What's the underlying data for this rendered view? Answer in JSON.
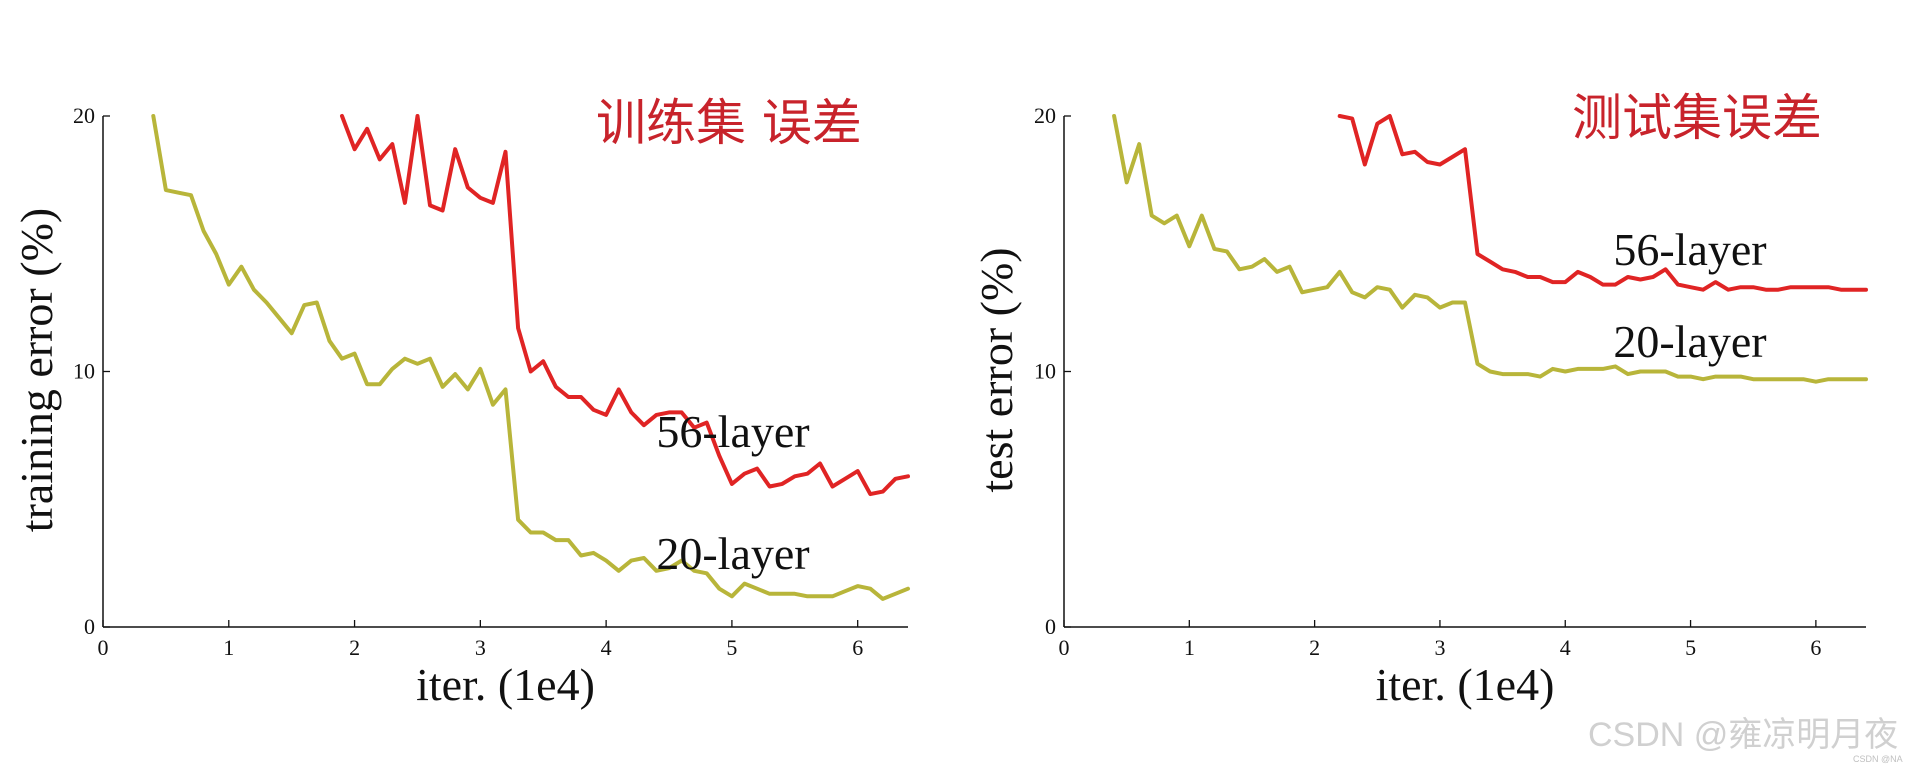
{
  "colors": {
    "layer56": "#e02424",
    "layer20": "#b8b53a",
    "axis": "#111111"
  },
  "watermark": {
    "text": "CSDN @雍凉明月夜",
    "small": "CSDN @NA"
  },
  "chart_data": [
    {
      "type": "line",
      "annotation": "训练集 误差",
      "xlabel": "iter. (1e4)",
      "ylabel": "training error (%)",
      "xlim": [
        0,
        6.4
      ],
      "ylim": [
        0,
        20
      ],
      "xticks": [
        "0",
        "1",
        "2",
        "3",
        "4",
        "5",
        "6"
      ],
      "yticks": [
        "0",
        "10",
        "20"
      ],
      "grid": false,
      "series": [
        {
          "name": "56-layer",
          "color_key": "layer56",
          "x": [
            1.9,
            2.0,
            2.1,
            2.2,
            2.3,
            2.4,
            2.5,
            2.6,
            2.7,
            2.8,
            2.9,
            3.0,
            3.1,
            3.2,
            3.3,
            3.4,
            3.5,
            3.6,
            3.7,
            3.8,
            3.9,
            4.0,
            4.1,
            4.2,
            4.3,
            4.4,
            4.5,
            4.6,
            4.7,
            4.8,
            4.9,
            5.0,
            5.1,
            5.2,
            5.3,
            5.4,
            5.5,
            5.6,
            5.7,
            5.8,
            5.9,
            6.0,
            6.1,
            6.2,
            6.3,
            6.4
          ],
          "y": [
            20,
            18.7,
            19.5,
            18.3,
            18.9,
            16.6,
            20,
            16.5,
            16.3,
            18.7,
            17.2,
            16.8,
            16.6,
            18.6,
            11.7,
            10.0,
            10.4,
            9.4,
            9.0,
            9.0,
            8.5,
            8.3,
            9.3,
            8.4,
            7.9,
            8.3,
            8.4,
            8.4,
            7.8,
            8.0,
            6.7,
            5.6,
            6.0,
            6.2,
            5.5,
            5.6,
            5.9,
            6.0,
            6.4,
            5.5,
            5.8,
            6.1,
            5.2,
            5.3,
            5.8,
            5.9
          ]
        },
        {
          "name": "20-layer",
          "color_key": "layer20",
          "x": [
            0.4,
            0.5,
            0.6,
            0.7,
            0.8,
            0.9,
            1.0,
            1.1,
            1.2,
            1.3,
            1.4,
            1.5,
            1.6,
            1.7,
            1.8,
            1.9,
            2.0,
            2.1,
            2.2,
            2.3,
            2.4,
            2.5,
            2.6,
            2.7,
            2.8,
            2.9,
            3.0,
            3.1,
            3.2,
            3.3,
            3.4,
            3.5,
            3.6,
            3.7,
            3.8,
            3.9,
            4.0,
            4.1,
            4.2,
            4.3,
            4.4,
            4.5,
            4.6,
            4.7,
            4.8,
            4.9,
            5.0,
            5.1,
            5.2,
            5.3,
            5.4,
            5.5,
            5.6,
            5.7,
            5.8,
            5.9,
            6.0,
            6.1,
            6.2,
            6.3,
            6.4
          ],
          "y": [
            20,
            17.1,
            17.0,
            16.9,
            15.5,
            14.6,
            13.4,
            14.1,
            13.2,
            12.7,
            12.1,
            11.5,
            12.6,
            12.7,
            11.2,
            10.5,
            10.7,
            9.5,
            9.5,
            10.1,
            10.5,
            10.3,
            10.5,
            9.4,
            9.9,
            9.3,
            10.1,
            8.7,
            9.3,
            4.2,
            3.7,
            3.7,
            3.4,
            3.4,
            2.8,
            2.9,
            2.6,
            2.2,
            2.6,
            2.7,
            2.2,
            2.3,
            2.6,
            2.2,
            2.1,
            1.5,
            1.2,
            1.7,
            1.5,
            1.3,
            1.3,
            1.3,
            1.2,
            1.2,
            1.2,
            1.4,
            1.6,
            1.5,
            1.1,
            1.3,
            1.5
          ]
        }
      ]
    },
    {
      "type": "line",
      "annotation": "测试集误差",
      "xlabel": "iter. (1e4)",
      "ylabel": "test error (%)",
      "xlim": [
        0,
        6.4
      ],
      "ylim": [
        0,
        20
      ],
      "xticks": [
        "0",
        "1",
        "2",
        "3",
        "4",
        "5",
        "6"
      ],
      "yticks": [
        "0",
        "10",
        "20"
      ],
      "grid": false,
      "series": [
        {
          "name": "56-layer",
          "color_key": "layer56",
          "x": [
            2.2,
            2.3,
            2.4,
            2.5,
            2.6,
            2.7,
            2.8,
            2.9,
            3.0,
            3.1,
            3.2,
            3.3,
            3.4,
            3.5,
            3.6,
            3.7,
            3.8,
            3.9,
            4.0,
            4.1,
            4.2,
            4.3,
            4.4,
            4.5,
            4.6,
            4.7,
            4.8,
            4.9,
            5.0,
            5.1,
            5.2,
            5.3,
            5.4,
            5.5,
            5.6,
            5.7,
            5.8,
            5.9,
            6.0,
            6.1,
            6.2,
            6.3,
            6.4
          ],
          "y": [
            20,
            19.9,
            18.1,
            19.7,
            20,
            18.5,
            18.6,
            18.2,
            18.1,
            18.4,
            18.7,
            14.6,
            14.3,
            14.0,
            13.9,
            13.7,
            13.7,
            13.5,
            13.5,
            13.9,
            13.7,
            13.4,
            13.4,
            13.7,
            13.6,
            13.7,
            14.0,
            13.4,
            13.3,
            13.2,
            13.5,
            13.2,
            13.3,
            13.3,
            13.2,
            13.2,
            13.3,
            13.3,
            13.3,
            13.3,
            13.2,
            13.2,
            13.2
          ]
        },
        {
          "name": "20-layer",
          "color_key": "layer20",
          "x": [
            0.4,
            0.5,
            0.6,
            0.7,
            0.8,
            0.9,
            1.0,
            1.1,
            1.2,
            1.3,
            1.4,
            1.5,
            1.6,
            1.7,
            1.8,
            1.9,
            2.0,
            2.1,
            2.2,
            2.3,
            2.4,
            2.5,
            2.6,
            2.7,
            2.8,
            2.9,
            3.0,
            3.1,
            3.2,
            3.3,
            3.4,
            3.5,
            3.6,
            3.7,
            3.8,
            3.9,
            4.0,
            4.1,
            4.2,
            4.3,
            4.4,
            4.5,
            4.6,
            4.7,
            4.8,
            4.9,
            5.0,
            5.1,
            5.2,
            5.3,
            5.4,
            5.5,
            5.6,
            5.7,
            5.8,
            5.9,
            6.0,
            6.1,
            6.2,
            6.3,
            6.4
          ],
          "y": [
            20,
            17.4,
            18.9,
            16.1,
            15.8,
            16.1,
            14.9,
            16.1,
            14.8,
            14.7,
            14.0,
            14.1,
            14.4,
            13.9,
            14.1,
            13.1,
            13.2,
            13.3,
            13.9,
            13.1,
            12.9,
            13.3,
            13.2,
            12.5,
            13.0,
            12.9,
            12.5,
            12.7,
            12.7,
            10.3,
            10.0,
            9.9,
            9.9,
            9.9,
            9.8,
            10.1,
            10.0,
            10.1,
            10.1,
            10.1,
            10.2,
            9.9,
            10.0,
            10.0,
            10.0,
            9.8,
            9.8,
            9.7,
            9.8,
            9.8,
            9.8,
            9.7,
            9.7,
            9.7,
            9.7,
            9.7,
            9.6,
            9.7,
            9.7,
            9.7,
            9.7
          ]
        }
      ]
    }
  ]
}
